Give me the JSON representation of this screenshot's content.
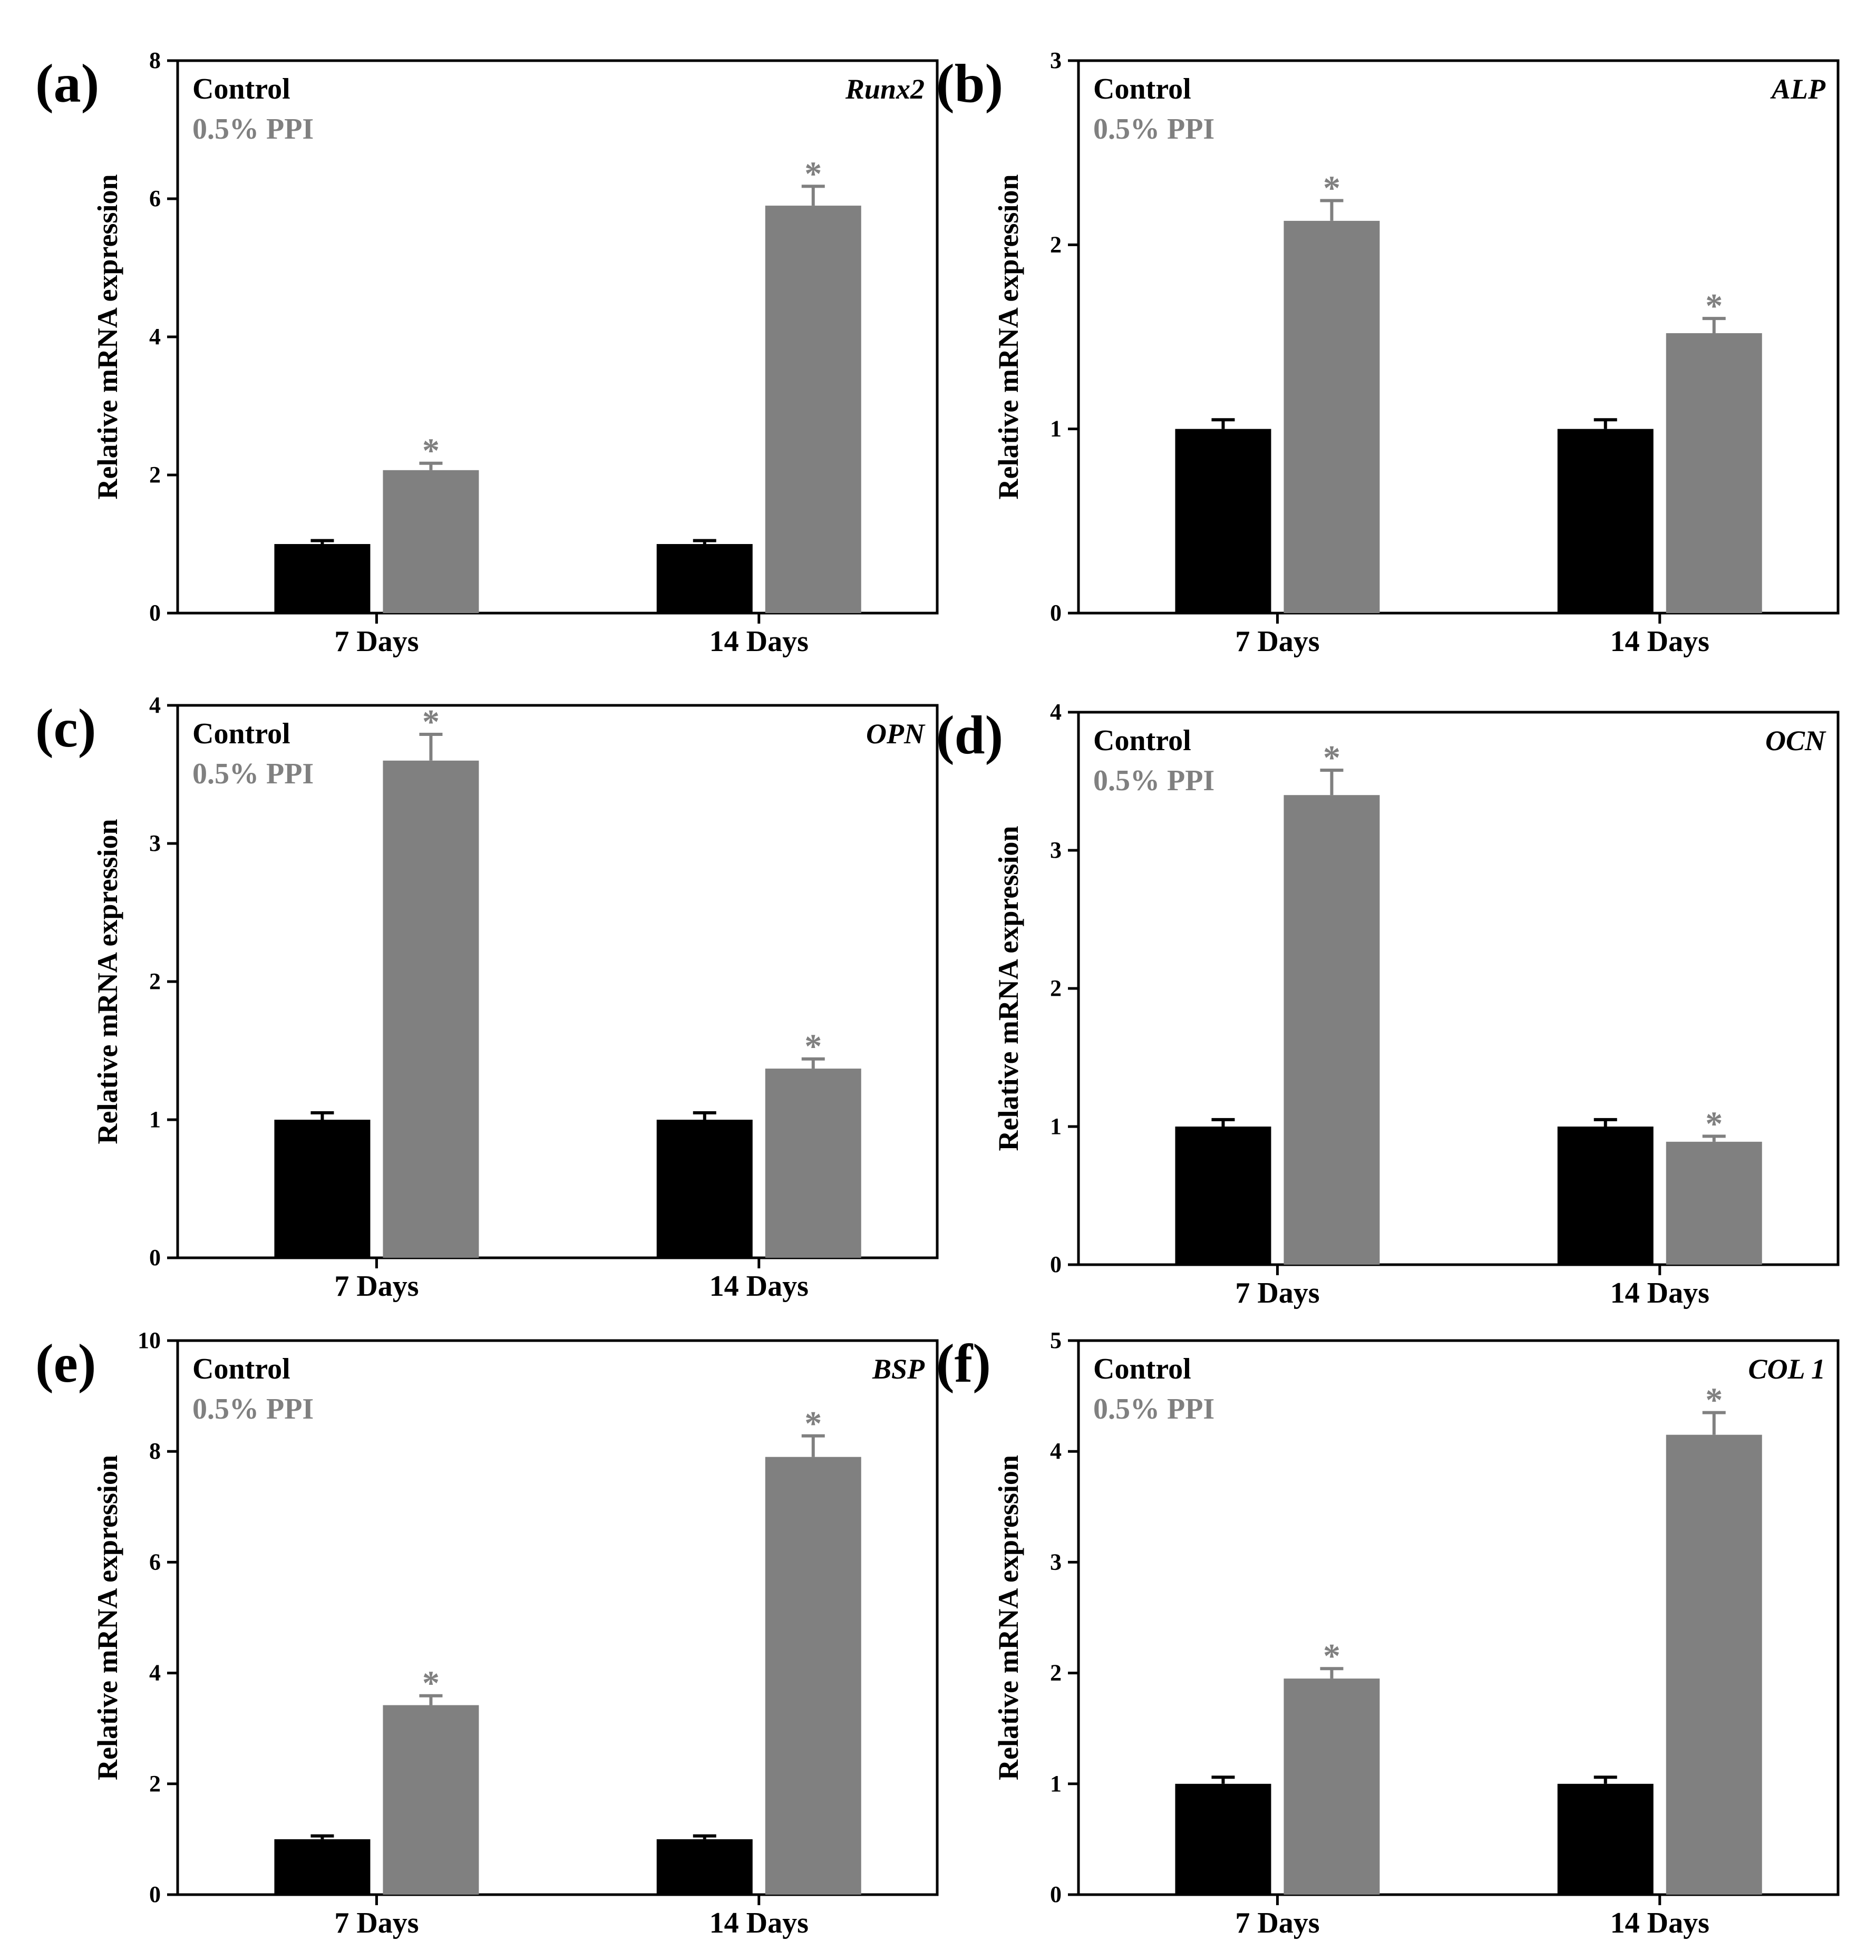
{
  "figure": {
    "legend": {
      "control": "Control",
      "treatment": "0.5% PPI"
    },
    "ylabel": "Relative mRNA expression",
    "categories": [
      "7 Days",
      "14 Days"
    ],
    "significance_marker": "*",
    "colors": {
      "control": "#000000",
      "treatment": "#808080",
      "axis": "#000000"
    }
  },
  "chart_data": [
    {
      "type": "bar",
      "panel_label": "(a)",
      "title": "Runx2",
      "categories": [
        "7 Days",
        "14 Days"
      ],
      "ylabel": "Relative mRNA expression",
      "xlabel": "",
      "ylim": [
        0,
        8
      ],
      "yticks": [
        0,
        2,
        4,
        6,
        8
      ],
      "legend": [
        "Control",
        "0.5% PPI"
      ],
      "series": [
        {
          "name": "Control",
          "values": [
            1.0,
            1.0
          ],
          "errors": [
            0.05,
            0.05
          ]
        },
        {
          "name": "0.5% PPI",
          "values": [
            2.07,
            5.9
          ],
          "errors": [
            0.1,
            0.28
          ],
          "significant": [
            true,
            true
          ]
        }
      ]
    },
    {
      "type": "bar",
      "panel_label": "(b)",
      "title": "ALP",
      "categories": [
        "7 Days",
        "14 Days"
      ],
      "ylabel": "Relative mRNA expression",
      "xlabel": "",
      "ylim": [
        0,
        3
      ],
      "yticks": [
        0,
        1,
        2,
        3
      ],
      "legend": [
        "Control",
        "0.5% PPI"
      ],
      "series": [
        {
          "name": "Control",
          "values": [
            1.0,
            1.0
          ],
          "errors": [
            0.05,
            0.05
          ]
        },
        {
          "name": "0.5% PPI",
          "values": [
            2.13,
            1.52
          ],
          "errors": [
            0.11,
            0.08
          ],
          "significant": [
            true,
            true
          ]
        }
      ]
    },
    {
      "type": "bar",
      "panel_label": "(c)",
      "title": "OPN",
      "categories": [
        "7 Days",
        "14 Days"
      ],
      "ylabel": "Relative mRNA expression",
      "xlabel": "",
      "ylim": [
        0,
        4
      ],
      "yticks": [
        0,
        1,
        2,
        3,
        4
      ],
      "legend": [
        "Control",
        "0.5% PPI"
      ],
      "series": [
        {
          "name": "Control",
          "values": [
            1.0,
            1.0
          ],
          "errors": [
            0.05,
            0.05
          ]
        },
        {
          "name": "0.5% PPI",
          "values": [
            3.6,
            1.37
          ],
          "errors": [
            0.19,
            0.07
          ],
          "significant": [
            true,
            true
          ]
        }
      ]
    },
    {
      "type": "bar",
      "panel_label": "(d)",
      "title": "OCN",
      "categories": [
        "7 Days",
        "14 Days"
      ],
      "ylabel": "Relative mRNA expression",
      "xlabel": "",
      "ylim": [
        0,
        4
      ],
      "yticks": [
        0,
        1,
        2,
        3,
        4
      ],
      "legend": [
        "Control",
        "0.5% PPI"
      ],
      "series": [
        {
          "name": "Control",
          "values": [
            1.0,
            1.0
          ],
          "errors": [
            0.05,
            0.05
          ]
        },
        {
          "name": "0.5% PPI",
          "values": [
            3.4,
            0.89
          ],
          "errors": [
            0.18,
            0.04
          ],
          "significant": [
            true,
            true
          ]
        }
      ]
    },
    {
      "type": "bar",
      "panel_label": "(e)",
      "title": "BSP",
      "categories": [
        "7 Days",
        "14 Days"
      ],
      "ylabel": "Relative mRNA expression",
      "xlabel": "",
      "ylim": [
        0,
        10
      ],
      "yticks": [
        0,
        2,
        4,
        6,
        8,
        10
      ],
      "legend": [
        "Control",
        "0.5% PPI"
      ],
      "series": [
        {
          "name": "Control",
          "values": [
            1.0,
            1.0
          ],
          "errors": [
            0.06,
            0.06
          ]
        },
        {
          "name": "0.5% PPI",
          "values": [
            3.42,
            7.9
          ],
          "errors": [
            0.17,
            0.38
          ],
          "significant": [
            true,
            true
          ]
        }
      ]
    },
    {
      "type": "bar",
      "panel_label": "(f)",
      "title": "COL 1",
      "categories": [
        "7 Days",
        "14 Days"
      ],
      "ylabel": "Relative mRNA expression",
      "xlabel": "",
      "ylim": [
        0,
        5
      ],
      "yticks": [
        0,
        1,
        2,
        3,
        4,
        5
      ],
      "legend": [
        "Control",
        "0.5% PPI"
      ],
      "series": [
        {
          "name": "Control",
          "values": [
            1.0,
            1.0
          ],
          "errors": [
            0.06,
            0.06
          ]
        },
        {
          "name": "0.5% PPI",
          "values": [
            1.95,
            4.15
          ],
          "errors": [
            0.09,
            0.2
          ],
          "significant": [
            true,
            true
          ]
        }
      ]
    }
  ]
}
